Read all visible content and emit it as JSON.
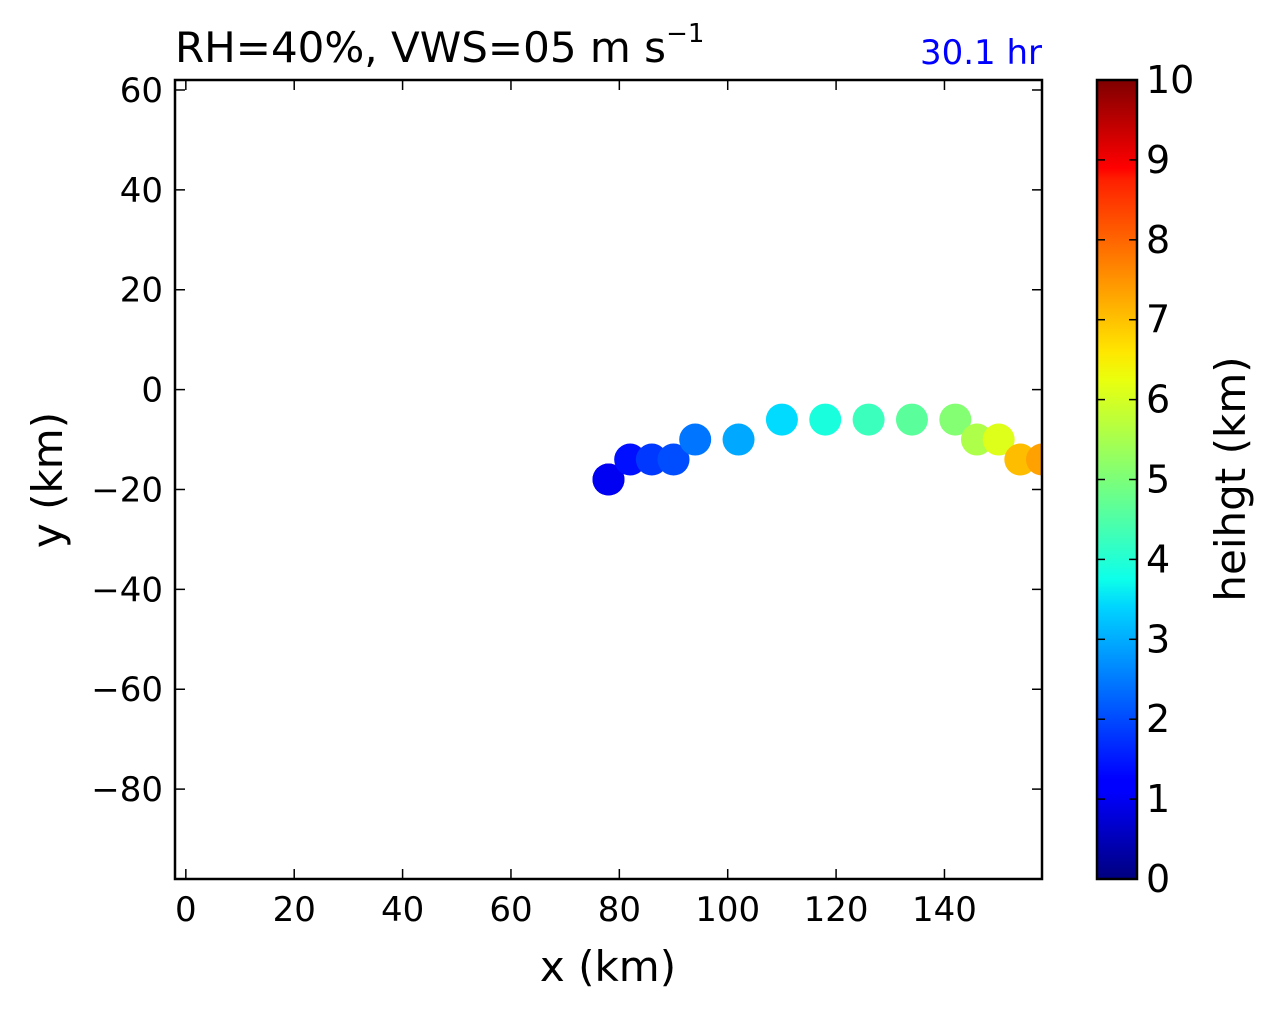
{
  "chart_data": {
    "type": "scatter",
    "title_main": "RH=40%, VWS=05 m s",
    "title_sup": "−1",
    "time_label": "30.1 hr",
    "time_label_color": "#0000ff",
    "xlabel": "x (km)",
    "ylabel": "y (km)",
    "xlim": [
      -2,
      158
    ],
    "ylim": [
      -98,
      62
    ],
    "xticks": [
      0,
      20,
      40,
      60,
      80,
      100,
      120,
      140
    ],
    "yticks": [
      60,
      40,
      20,
      0,
      -20,
      -40,
      -60,
      -80
    ],
    "xtick_labels": [
      "0",
      "20",
      "40",
      "60",
      "80",
      "100",
      "120",
      "140"
    ],
    "ytick_labels": [
      "60",
      "40",
      "20",
      "0",
      "−20",
      "−40",
      "−60",
      "−80"
    ],
    "colorbar": {
      "label": "heihgt (km)",
      "range": [
        0,
        10
      ],
      "ticks": [
        0,
        1,
        2,
        3,
        4,
        5,
        6,
        7,
        8,
        9,
        10
      ],
      "tick_labels": [
        "0",
        "1",
        "2",
        "3",
        "4",
        "5",
        "6",
        "7",
        "8",
        "9",
        "10"
      ],
      "colormap": "jet"
    },
    "grid": false,
    "points": [
      {
        "x": 78,
        "y": -18,
        "height": 0.8
      },
      {
        "x": 78,
        "y": -18,
        "height": 1.0
      },
      {
        "x": 82,
        "y": -14,
        "height": 1.4
      },
      {
        "x": 86,
        "y": -14,
        "height": 1.8
      },
      {
        "x": 90,
        "y": -14,
        "height": 2.0
      },
      {
        "x": 94,
        "y": -10,
        "height": 2.4
      },
      {
        "x": 102,
        "y": -10,
        "height": 2.9
      },
      {
        "x": 110,
        "y": -6,
        "height": 3.4
      },
      {
        "x": 118,
        "y": -6,
        "height": 3.8
      },
      {
        "x": 126,
        "y": -6,
        "height": 4.2
      },
      {
        "x": 134,
        "y": -6,
        "height": 4.6
      },
      {
        "x": 142,
        "y": -6,
        "height": 5.1
      },
      {
        "x": 146,
        "y": -10,
        "height": 5.6
      },
      {
        "x": 150,
        "y": -10,
        "height": 6.2
      },
      {
        "x": 154,
        "y": -14,
        "height": 7.1
      },
      {
        "x": 158,
        "y": -14,
        "height": 7.4
      }
    ]
  }
}
